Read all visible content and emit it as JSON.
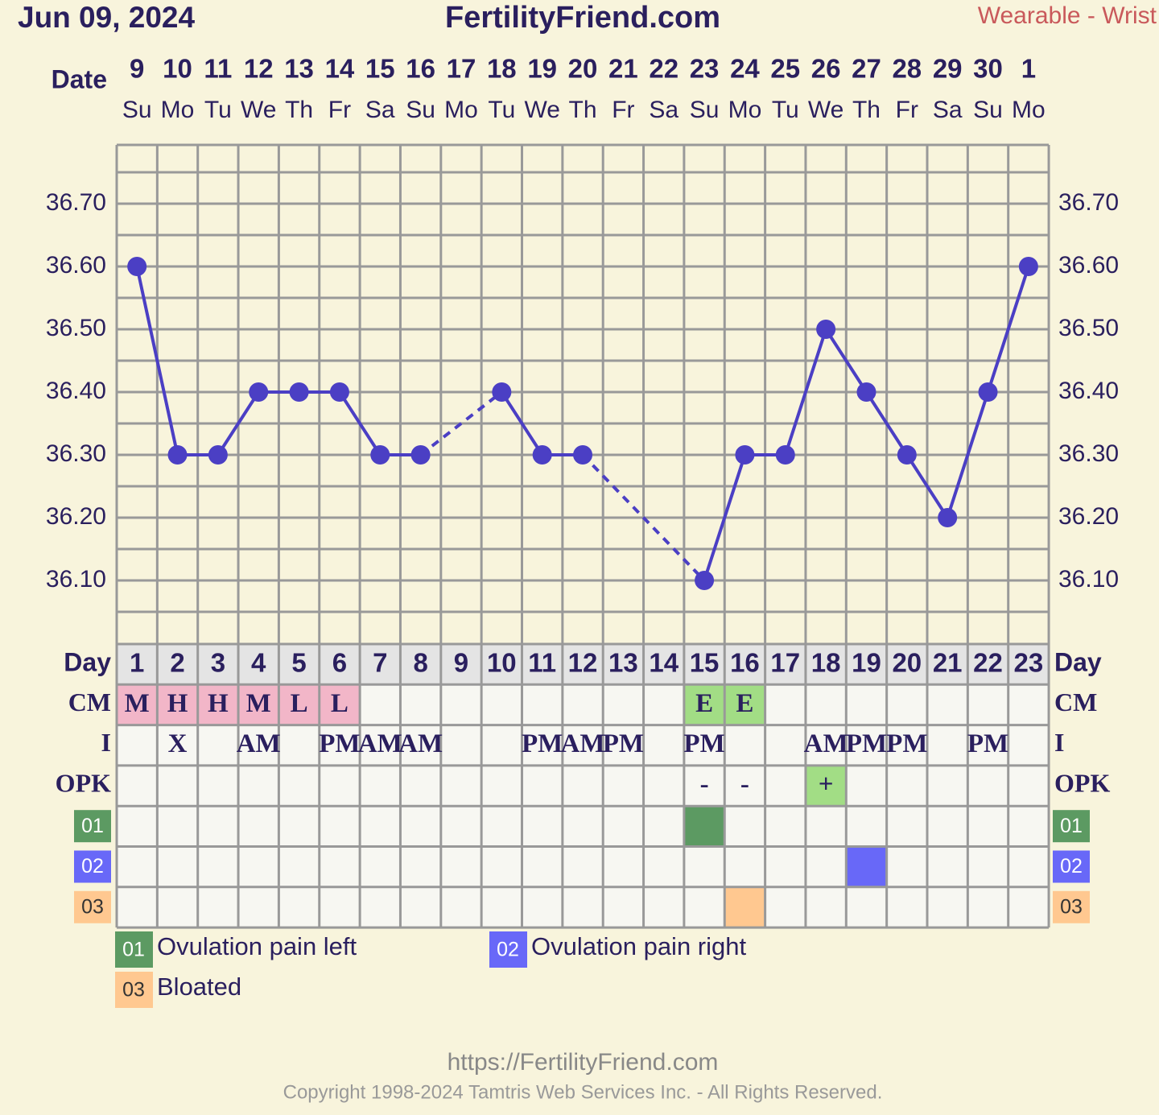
{
  "header": {
    "date": "Jun 09, 2024",
    "site": "FertilityFriend.com",
    "source": "Wearable - Wrist"
  },
  "chart_data": {
    "type": "line",
    "x_label": "Date",
    "categories": [
      "9",
      "10",
      "11",
      "12",
      "13",
      "14",
      "15",
      "16",
      "17",
      "18",
      "19",
      "20",
      "21",
      "22",
      "23",
      "24",
      "25",
      "26",
      "27",
      "28",
      "29",
      "30",
      "1"
    ],
    "weekdays": [
      "Su",
      "Mo",
      "Tu",
      "We",
      "Th",
      "Fr",
      "Sa",
      "Su",
      "Mo",
      "Tu",
      "We",
      "Th",
      "Fr",
      "Sa",
      "Su",
      "Mo",
      "Tu",
      "We",
      "Th",
      "Fr",
      "Sa",
      "Su",
      "Mo"
    ],
    "values": [
      36.6,
      36.3,
      36.3,
      36.4,
      36.4,
      36.4,
      36.3,
      36.3,
      null,
      36.4,
      36.3,
      36.3,
      null,
      null,
      36.1,
      36.3,
      36.3,
      36.5,
      36.4,
      36.3,
      36.2,
      36.4,
      36.6
    ],
    "color": "#4b3fc4",
    "ylim": [
      36.0,
      36.8
    ],
    "yticks": [
      {
        "value": 36.1,
        "label": "36.10"
      },
      {
        "value": 36.2,
        "label": "36.20"
      },
      {
        "value": 36.3,
        "label": "36.30"
      },
      {
        "value": 36.4,
        "label": "36.40"
      },
      {
        "value": 36.5,
        "label": "36.50"
      },
      {
        "value": 36.6,
        "label": "36.60"
      },
      {
        "value": 36.7,
        "label": "36.70"
      }
    ],
    "grid": true
  },
  "table": {
    "row_labels": [
      "Day",
      "CM",
      "I",
      "OPK"
    ],
    "days": [
      1,
      2,
      3,
      4,
      5,
      6,
      7,
      8,
      9,
      10,
      11,
      12,
      13,
      14,
      15,
      16,
      17,
      18,
      19,
      20,
      21,
      22,
      23
    ],
    "cm": [
      "M",
      "H",
      "H",
      "M",
      "L",
      "L",
      null,
      null,
      null,
      null,
      null,
      null,
      null,
      null,
      "E",
      "E",
      null,
      null,
      null,
      null,
      null,
      null,
      null
    ],
    "intercourse": [
      null,
      "X",
      null,
      "AM",
      null,
      "PM",
      "AM",
      "AM",
      null,
      null,
      "PM",
      "AM",
      "PM",
      null,
      "PM",
      null,
      null,
      "AM",
      "PM",
      "PM",
      null,
      "PM",
      null
    ],
    "opk": [
      null,
      null,
      null,
      null,
      null,
      null,
      null,
      null,
      null,
      null,
      null,
      null,
      null,
      null,
      "-",
      "-",
      null,
      "+",
      null,
      null,
      null,
      null,
      null
    ],
    "symptoms": [
      {
        "code": "01",
        "name": "Ovulation pain left",
        "color": "#5c9a62",
        "days": [
          15
        ]
      },
      {
        "code": "02",
        "name": "Ovulation pain right",
        "color": "#6868f8",
        "days": [
          19
        ]
      },
      {
        "code": "03",
        "name": "Bloated",
        "color": "#ffc890",
        "days": [
          16
        ]
      }
    ]
  },
  "footer": {
    "url": "https://FertilityFriend.com",
    "copyright": "Copyright 1998-2024 Tamtris Web Services Inc. - All Rights Reserved."
  }
}
